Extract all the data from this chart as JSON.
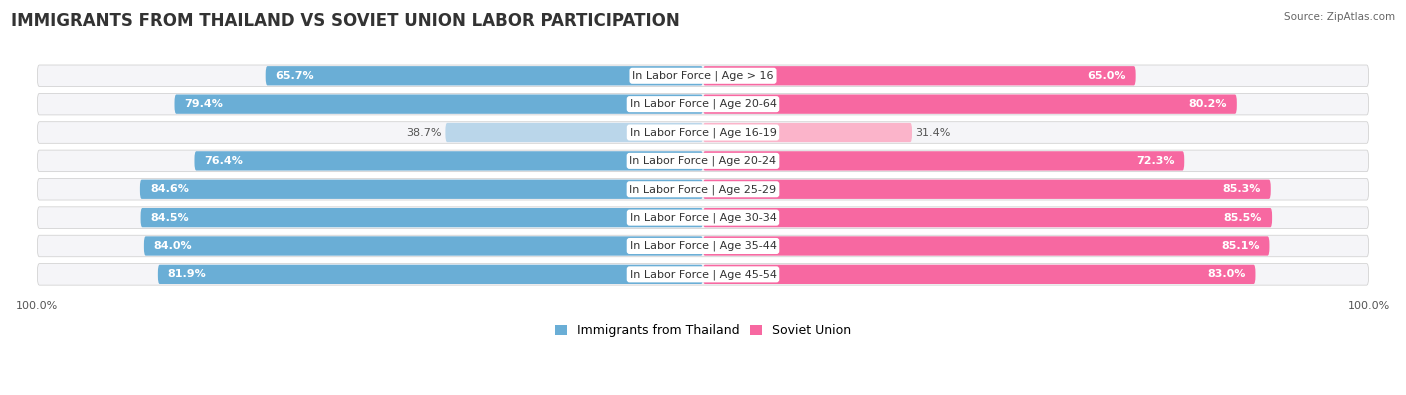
{
  "title": "IMMIGRANTS FROM THAILAND VS SOVIET UNION LABOR PARTICIPATION",
  "source": "Source: ZipAtlas.com",
  "categories": [
    "In Labor Force | Age > 16",
    "In Labor Force | Age 20-64",
    "In Labor Force | Age 16-19",
    "In Labor Force | Age 20-24",
    "In Labor Force | Age 25-29",
    "In Labor Force | Age 30-34",
    "In Labor Force | Age 35-44",
    "In Labor Force | Age 45-54"
  ],
  "thailand_values": [
    65.7,
    79.4,
    38.7,
    76.4,
    84.6,
    84.5,
    84.0,
    81.9
  ],
  "soviet_values": [
    65.0,
    80.2,
    31.4,
    72.3,
    85.3,
    85.5,
    85.1,
    83.0
  ],
  "thailand_color": "#6aaed6",
  "thailand_light_color": "#bad6ea",
  "soviet_color": "#f768a1",
  "soviet_light_color": "#fbb4ca",
  "row_bg_color": "#e8e8e8",
  "row_inner_bg": "#f5f5f8",
  "max_value": 100.0,
  "legend_thailand": "Immigrants from Thailand",
  "legend_soviet": "Soviet Union",
  "title_fontsize": 12,
  "label_fontsize": 8,
  "value_fontsize": 8,
  "axis_label_fontsize": 8,
  "light_threshold": 55
}
